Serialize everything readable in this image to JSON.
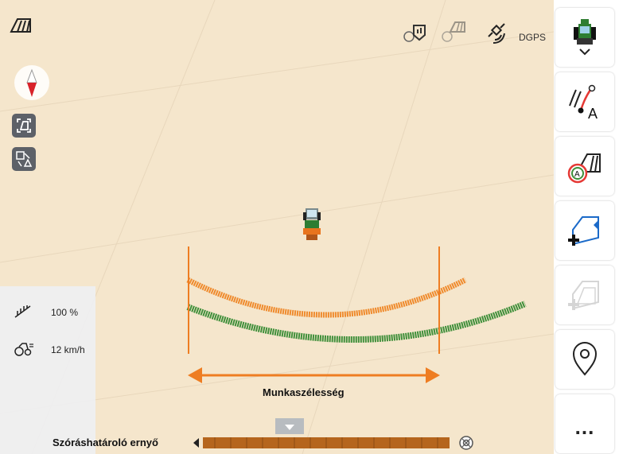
{
  "status": {
    "gps_mode": "DGPS",
    "icons": [
      "section-control-icon",
      "map-marker-gear-icon",
      "autosection-gear-icon",
      "satellite-icon"
    ]
  },
  "left_panel": {
    "icons": [
      "autosection-icon",
      "compass-icon",
      "field-boundary-icon",
      "map-view-icon"
    ]
  },
  "readouts": {
    "application_rate": "100 %",
    "speed": "12 km/h"
  },
  "annotations": {
    "working_width": "Munkaszélesség",
    "border_spreading_shield": "Szóráshatároló ernyő"
  },
  "sidebar": {
    "buttons": [
      {
        "icon": "tractor-icon",
        "enabled": true
      },
      {
        "icon": "guidance-line-a-icon",
        "enabled": true
      },
      {
        "icon": "auto-section-control-icon",
        "enabled": true
      },
      {
        "icon": "add-field-boundary-icon",
        "enabled": true
      },
      {
        "icon": "add-field-boundary-icon",
        "enabled": false
      },
      {
        "icon": "location-pin-icon",
        "enabled": true
      },
      {
        "icon": "more-icon",
        "label": "..."
      }
    ]
  },
  "colors": {
    "map_background": "#f5e6cc",
    "spread_orange": "#ef8a2c",
    "spread_green": "#3f8f3a",
    "arrow_orange": "#ee7d22",
    "accent_blue": "#1b6ac9"
  }
}
